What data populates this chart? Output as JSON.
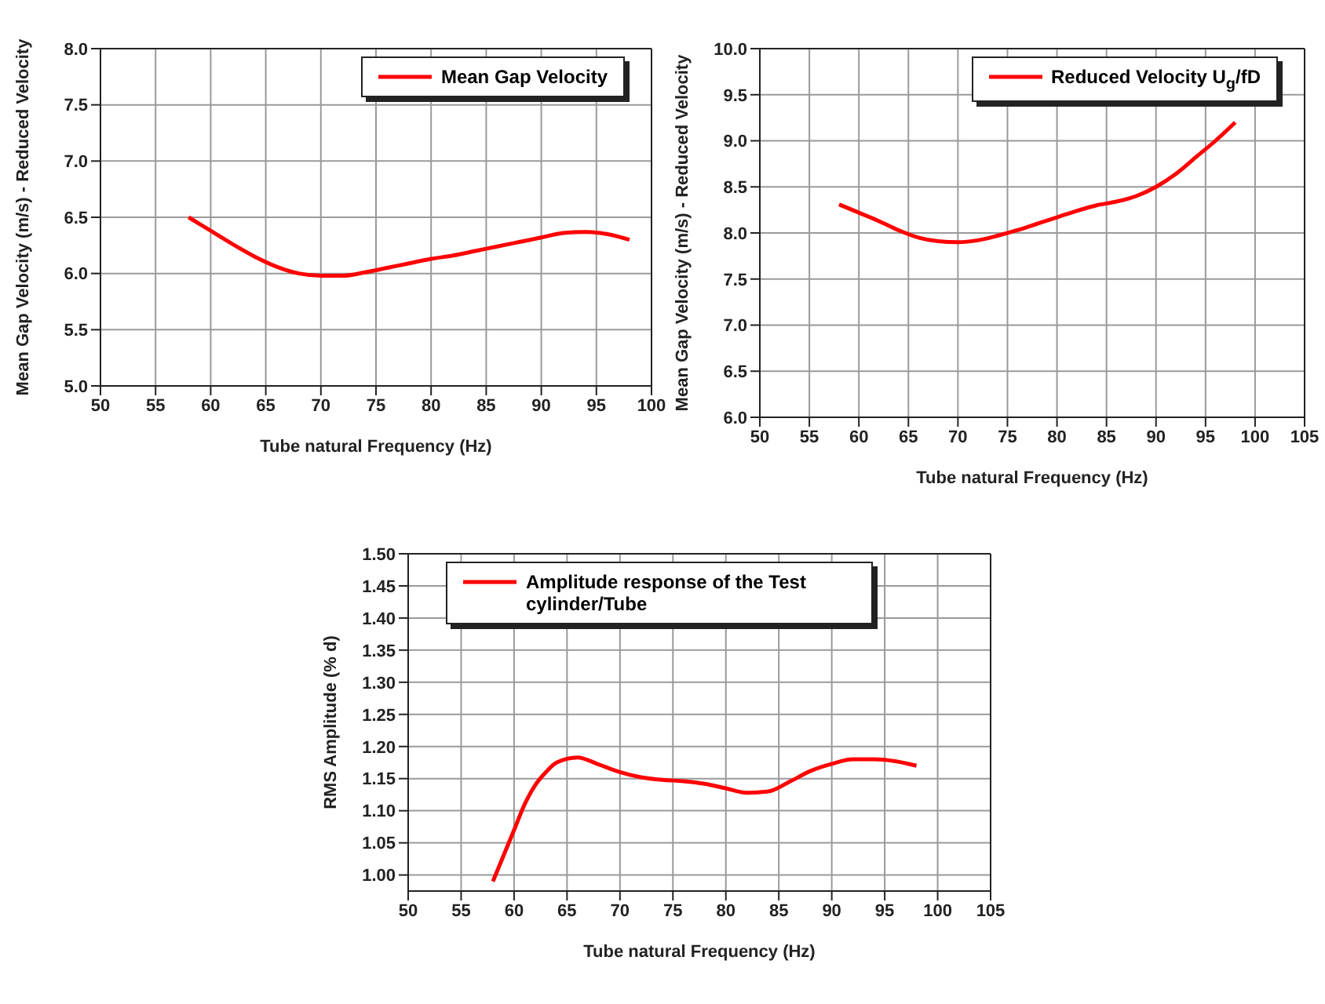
{
  "chart_data": [
    {
      "type": "line",
      "xlabel": "Tube natural Frequency (Hz)",
      "ylabel": "Mean Gap Velocity (m/s) - Reduced Velocity",
      "x": [
        58,
        60,
        62,
        64,
        66,
        68,
        70,
        72,
        74,
        76,
        78,
        80,
        82,
        84,
        86,
        88,
        90,
        92,
        94,
        96,
        98
      ],
      "series": [
        {
          "name": "Mean Gap Velocity",
          "color": "#ff0000",
          "values": [
            6.5,
            6.38,
            6.26,
            6.15,
            6.06,
            6.0,
            5.98,
            5.98,
            6.01,
            6.05,
            6.09,
            6.13,
            6.16,
            6.2,
            6.24,
            6.28,
            6.32,
            6.36,
            6.37,
            6.35,
            6.3
          ]
        }
      ],
      "xlim": [
        50,
        100
      ],
      "xticks": [
        50,
        55,
        60,
        65,
        70,
        75,
        80,
        85,
        90,
        95,
        100
      ],
      "ylim": [
        5,
        8
      ],
      "yticks": [
        {
          "value": 5,
          "label": "5.0"
        },
        {
          "value": 5.5,
          "label": "5.5"
        },
        {
          "value": 6,
          "label": "6.0"
        },
        {
          "value": 6.5,
          "label": "6.5"
        },
        {
          "value": 7,
          "label": "7.0"
        },
        {
          "value": 7.5,
          "label": "7.5"
        },
        {
          "value": 8,
          "label": "8.0"
        }
      ],
      "grid": true,
      "legend": "top right",
      "marker": "none",
      "line_style": "solid"
    },
    {
      "type": "line",
      "xlabel": "Tube natural Frequency (Hz)",
      "ylabel": "Mean Gap Velocity (m/s) - Reduced Velocity",
      "x": [
        58,
        60,
        62,
        64,
        66,
        68,
        70,
        72,
        74,
        76,
        78,
        80,
        82,
        84,
        86,
        88,
        90,
        92,
        94,
        96,
        98
      ],
      "series": [
        {
          "name": "Reduced Velocity U$_{g}$/fD",
          "color": "#ff0000",
          "values": [
            8.31,
            8.22,
            8.13,
            8.03,
            7.95,
            7.91,
            7.9,
            7.92,
            7.97,
            8.03,
            8.1,
            8.17,
            8.24,
            8.3,
            8.34,
            8.4,
            8.5,
            8.64,
            8.82,
            9.0,
            9.2
          ]
        }
      ],
      "xlim": [
        50,
        105
      ],
      "xticks": [
        50,
        55,
        60,
        65,
        70,
        75,
        80,
        85,
        90,
        95,
        100,
        105
      ],
      "ylim": [
        6,
        10
      ],
      "yticks": [
        {
          "value": 6,
          "label": "6.0"
        },
        {
          "value": 6.5,
          "label": "6.5"
        },
        {
          "value": 7,
          "label": "7.0"
        },
        {
          "value": 7.5,
          "label": "7.5"
        },
        {
          "value": 8,
          "label": "8.0"
        },
        {
          "value": 8.5,
          "label": "8.5"
        },
        {
          "value": 9,
          "label": "9.0"
        },
        {
          "value": 9.5,
          "label": "9.5"
        },
        {
          "value": 10,
          "label": "10.0"
        }
      ],
      "grid": true,
      "legend": "top right",
      "marker": "none",
      "line_style": "solid"
    },
    {
      "type": "line",
      "xlabel": "Tube natural Frequency (Hz)",
      "ylabel": "RMS Amplitude (% d)",
      "x": [
        58,
        59,
        60,
        61,
        62,
        63,
        64,
        66,
        68,
        70,
        72,
        74,
        76,
        78,
        80,
        82,
        84,
        86,
        88,
        90,
        92,
        94,
        96,
        98
      ],
      "series": [
        {
          "name": "Amplitude response of the Test cylinder/Tube",
          "color": "#ff0000",
          "values": [
            0.99,
            1.03,
            1.07,
            1.11,
            1.14,
            1.16,
            1.175,
            1.183,
            1.172,
            1.16,
            1.152,
            1.148,
            1.146,
            1.142,
            1.135,
            1.128,
            1.13,
            1.145,
            1.162,
            1.173,
            1.18,
            1.18,
            1.177,
            1.17
          ]
        }
      ],
      "xlim": [
        50,
        105
      ],
      "xticks": [
        50,
        55,
        60,
        65,
        70,
        75,
        80,
        85,
        90,
        95,
        100,
        105
      ],
      "ylim": [
        0.975,
        1.5
      ],
      "yticks": [
        {
          "value": 1,
          "label": "1.00"
        },
        {
          "value": 1.05,
          "label": "1.05"
        },
        {
          "value": 1.1,
          "label": "1.10"
        },
        {
          "value": 1.15,
          "label": "1.15"
        },
        {
          "value": 1.2,
          "label": "1.20"
        },
        {
          "value": 1.25,
          "label": "1.25"
        },
        {
          "value": 1.3,
          "label": "1.30"
        },
        {
          "value": 1.35,
          "label": "1.35"
        },
        {
          "value": 1.4,
          "label": "1.40"
        },
        {
          "value": 1.45,
          "label": "1.45"
        },
        {
          "value": 1.5,
          "label": "1.50"
        }
      ],
      "grid": true,
      "legend": "top left",
      "marker": "none",
      "line_style": "solid"
    }
  ]
}
